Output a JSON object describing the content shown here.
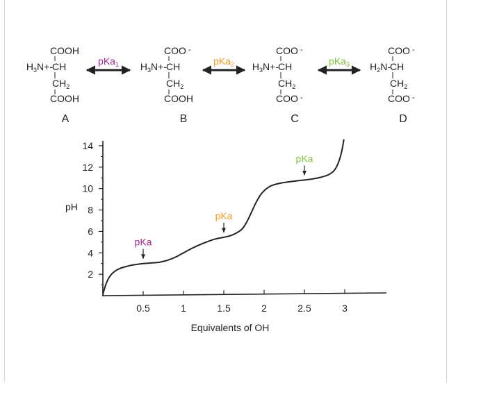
{
  "colors": {
    "pka1": "#a3288f",
    "pka2": "#f29a1f",
    "pka3": "#7fc241",
    "ink": "#222222",
    "frame": "#d6d6d6"
  },
  "species": [
    {
      "letter": "A",
      "top": "COOH",
      "top_charge": "",
      "left_main": "H",
      "left_sub": "3",
      "left_rest": "N+-",
      "alpha": "CH",
      "side_main": "CH",
      "side_sub": "2",
      "bottom": "COOH",
      "bottom_charge": ""
    },
    {
      "letter": "B",
      "top": "COO",
      "top_charge": "-",
      "left_main": "H",
      "left_sub": "3",
      "left_rest": "N+-",
      "alpha": "CH",
      "side_main": "CH",
      "side_sub": "2",
      "bottom": "COOH",
      "bottom_charge": ""
    },
    {
      "letter": "C",
      "top": "COO",
      "top_charge": "-",
      "left_main": "H",
      "left_sub": "3",
      "left_rest": "N+-",
      "alpha": "CH",
      "side_main": "CH",
      "side_sub": "2",
      "bottom": "COO",
      "bottom_charge": "-"
    },
    {
      "letter": "D",
      "top": "COO",
      "top_charge": "-",
      "left_main": "H",
      "left_sub": "2",
      "left_rest": "N-",
      "alpha": "CH",
      "side_main": "CH",
      "side_sub": "2",
      "bottom": "COO",
      "bottom_charge": "-"
    }
  ],
  "equilibria": [
    {
      "label": "pKa",
      "sub": "1",
      "color": "#a3288f"
    },
    {
      "label": "pKa",
      "sub": "2",
      "color": "#f29a1f"
    },
    {
      "label": "pKa",
      "sub": "3",
      "color": "#7fc241"
    }
  ],
  "chart_data": {
    "type": "line",
    "xlabel": "Equivalents of OH",
    "ylabel": "pH",
    "xlim": [
      0,
      3.5
    ],
    "ylim": [
      0,
      14
    ],
    "x_ticks": [
      0.5,
      1,
      1.5,
      2,
      2.5,
      3
    ],
    "x_tick_labels": [
      "0.5",
      "1",
      "1.5",
      "2",
      "2.5",
      "3"
    ],
    "y_ticks": [
      2,
      4,
      6,
      8,
      10,
      12,
      14
    ],
    "y_tick_labels": [
      "2",
      "4",
      "6",
      "8",
      "10",
      "12",
      "14"
    ],
    "grid": false,
    "series": [
      {
        "x": [
          0.0,
          0.03,
          0.07,
          0.12,
          0.2,
          0.3,
          0.4,
          0.5,
          0.6,
          0.7,
          0.8,
          0.9,
          1.0,
          1.1,
          1.2,
          1.3,
          1.4,
          1.5,
          1.6,
          1.7,
          1.75,
          1.8,
          1.85,
          1.9,
          1.95,
          2.0,
          2.05,
          2.1,
          2.2,
          2.3,
          2.4,
          2.5,
          2.6,
          2.7,
          2.8,
          2.87,
          2.92,
          2.96,
          2.99
        ],
        "y": [
          0.1,
          0.9,
          1.6,
          2.1,
          2.5,
          2.75,
          2.9,
          3.0,
          3.05,
          3.12,
          3.3,
          3.6,
          4.0,
          4.4,
          4.75,
          5.05,
          5.3,
          5.45,
          5.65,
          6.05,
          6.45,
          7.1,
          7.9,
          8.7,
          9.35,
          9.8,
          10.1,
          10.3,
          10.5,
          10.62,
          10.72,
          10.8,
          10.9,
          11.05,
          11.3,
          11.7,
          12.4,
          13.4,
          14.6
        ]
      }
    ],
    "annotations": [
      {
        "text": "pKa",
        "x": 0.5,
        "y": 3.0,
        "color": "#a3288f"
      },
      {
        "text": "pKa",
        "x": 1.5,
        "y": 5.45,
        "color": "#f29a1f"
      },
      {
        "text": "pKa",
        "x": 2.5,
        "y": 10.8,
        "color": "#7fc241"
      }
    ]
  }
}
